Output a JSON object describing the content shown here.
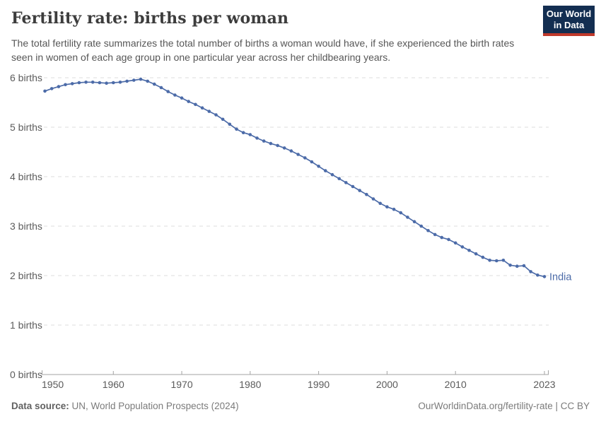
{
  "header": {
    "title": "Fertility rate: births per woman",
    "subtitle": "The total fertility rate summarizes the total number of births a woman would have, if she experienced the birth rates seen in women of each age group in one particular year across her childbearing years.",
    "logo": {
      "line1": "Our World",
      "line2": "in Data"
    }
  },
  "colors": {
    "line": "#4C6BA8",
    "logo_navy": "#132E51",
    "logo_red": "#C0392B",
    "grid": "#DCDCDC",
    "axis": "#A3A3A3",
    "tick_text": "#5B5B5B"
  },
  "chart_data": {
    "type": "line",
    "title": "Fertility rate: births per woman",
    "xlabel": "",
    "ylabel": "births",
    "xlim": [
      1950,
      2023
    ],
    "ylim": [
      0,
      6
    ],
    "x_ticks": [
      1950,
      1960,
      1970,
      1980,
      1990,
      2000,
      2010,
      2023
    ],
    "y_ticks": [
      0,
      1,
      2,
      3,
      4,
      5,
      6
    ],
    "y_tick_suffix": " births",
    "grid": "horizontal-dashed",
    "legend": "end-of-line-label",
    "marker": "circle",
    "x": [
      1950,
      1951,
      1952,
      1953,
      1954,
      1955,
      1956,
      1957,
      1958,
      1959,
      1960,
      1961,
      1962,
      1963,
      1964,
      1965,
      1966,
      1967,
      1968,
      1969,
      1970,
      1971,
      1972,
      1973,
      1974,
      1975,
      1976,
      1977,
      1978,
      1979,
      1980,
      1981,
      1982,
      1983,
      1984,
      1985,
      1986,
      1987,
      1988,
      1989,
      1990,
      1991,
      1992,
      1993,
      1994,
      1995,
      1996,
      1997,
      1998,
      1999,
      2000,
      2001,
      2002,
      2003,
      2004,
      2005,
      2006,
      2007,
      2008,
      2009,
      2010,
      2011,
      2012,
      2013,
      2014,
      2015,
      2016,
      2017,
      2018,
      2019,
      2020,
      2021,
      2022,
      2023
    ],
    "series": [
      {
        "name": "India",
        "color": "#4C6BA8",
        "values": [
          5.73,
          5.78,
          5.82,
          5.86,
          5.88,
          5.9,
          5.91,
          5.91,
          5.9,
          5.89,
          5.9,
          5.91,
          5.93,
          5.95,
          5.97,
          5.93,
          5.87,
          5.8,
          5.72,
          5.65,
          5.59,
          5.52,
          5.46,
          5.39,
          5.32,
          5.25,
          5.16,
          5.06,
          4.96,
          4.89,
          4.85,
          4.78,
          4.72,
          4.67,
          4.63,
          4.58,
          4.52,
          4.45,
          4.38,
          4.3,
          4.21,
          4.12,
          4.04,
          3.96,
          3.88,
          3.8,
          3.72,
          3.64,
          3.55,
          3.46,
          3.39,
          3.34,
          3.27,
          3.18,
          3.09,
          3.0,
          2.91,
          2.83,
          2.77,
          2.73,
          2.66,
          2.58,
          2.51,
          2.44,
          2.37,
          2.31,
          2.3,
          2.31,
          2.21,
          2.19,
          2.2,
          2.08,
          2.01,
          1.98
        ]
      }
    ]
  },
  "footer": {
    "source_label": "Data source:",
    "source_value": " UN, World Population Prospects (2024)",
    "link": "OurWorldinData.org/fertility-rate | CC BY"
  }
}
